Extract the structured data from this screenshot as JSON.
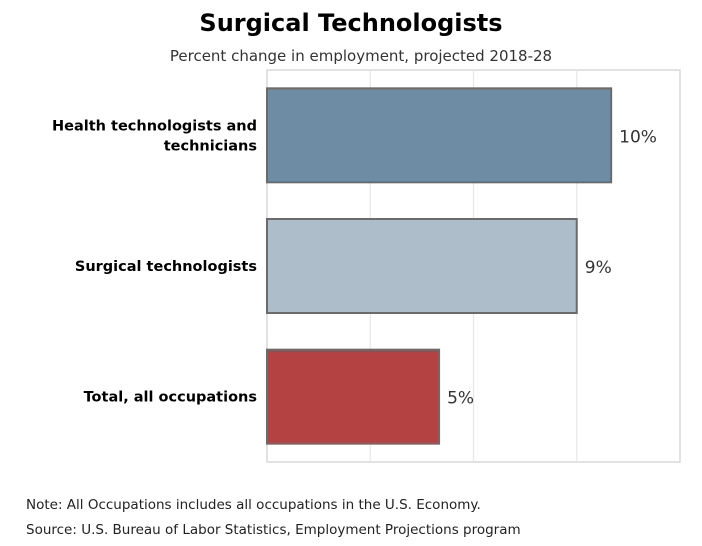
{
  "chart_data": {
    "type": "bar",
    "orientation": "horizontal",
    "title": "Surgical Technologists",
    "subtitle": "Percent change in employment, projected 2018-28",
    "categories": [
      [
        "Health technologists and",
        "technicians"
      ],
      [
        "Surgical technologists"
      ],
      [
        "Total, all occupations"
      ]
    ],
    "values": [
      10,
      9,
      5
    ],
    "value_labels": [
      "10%",
      "9%",
      "5%"
    ],
    "bar_colors": [
      "#6e8ca3",
      "#adbdca",
      "#b54242"
    ],
    "xlim": [
      0,
      12
    ],
    "grid": true,
    "xlabel": "",
    "ylabel": ""
  },
  "footnotes": {
    "note": "Note: All Occupations includes all occupations in the U.S. Economy.",
    "source": "Source: U.S. Bureau of Labor Statistics, Employment Projections program"
  }
}
